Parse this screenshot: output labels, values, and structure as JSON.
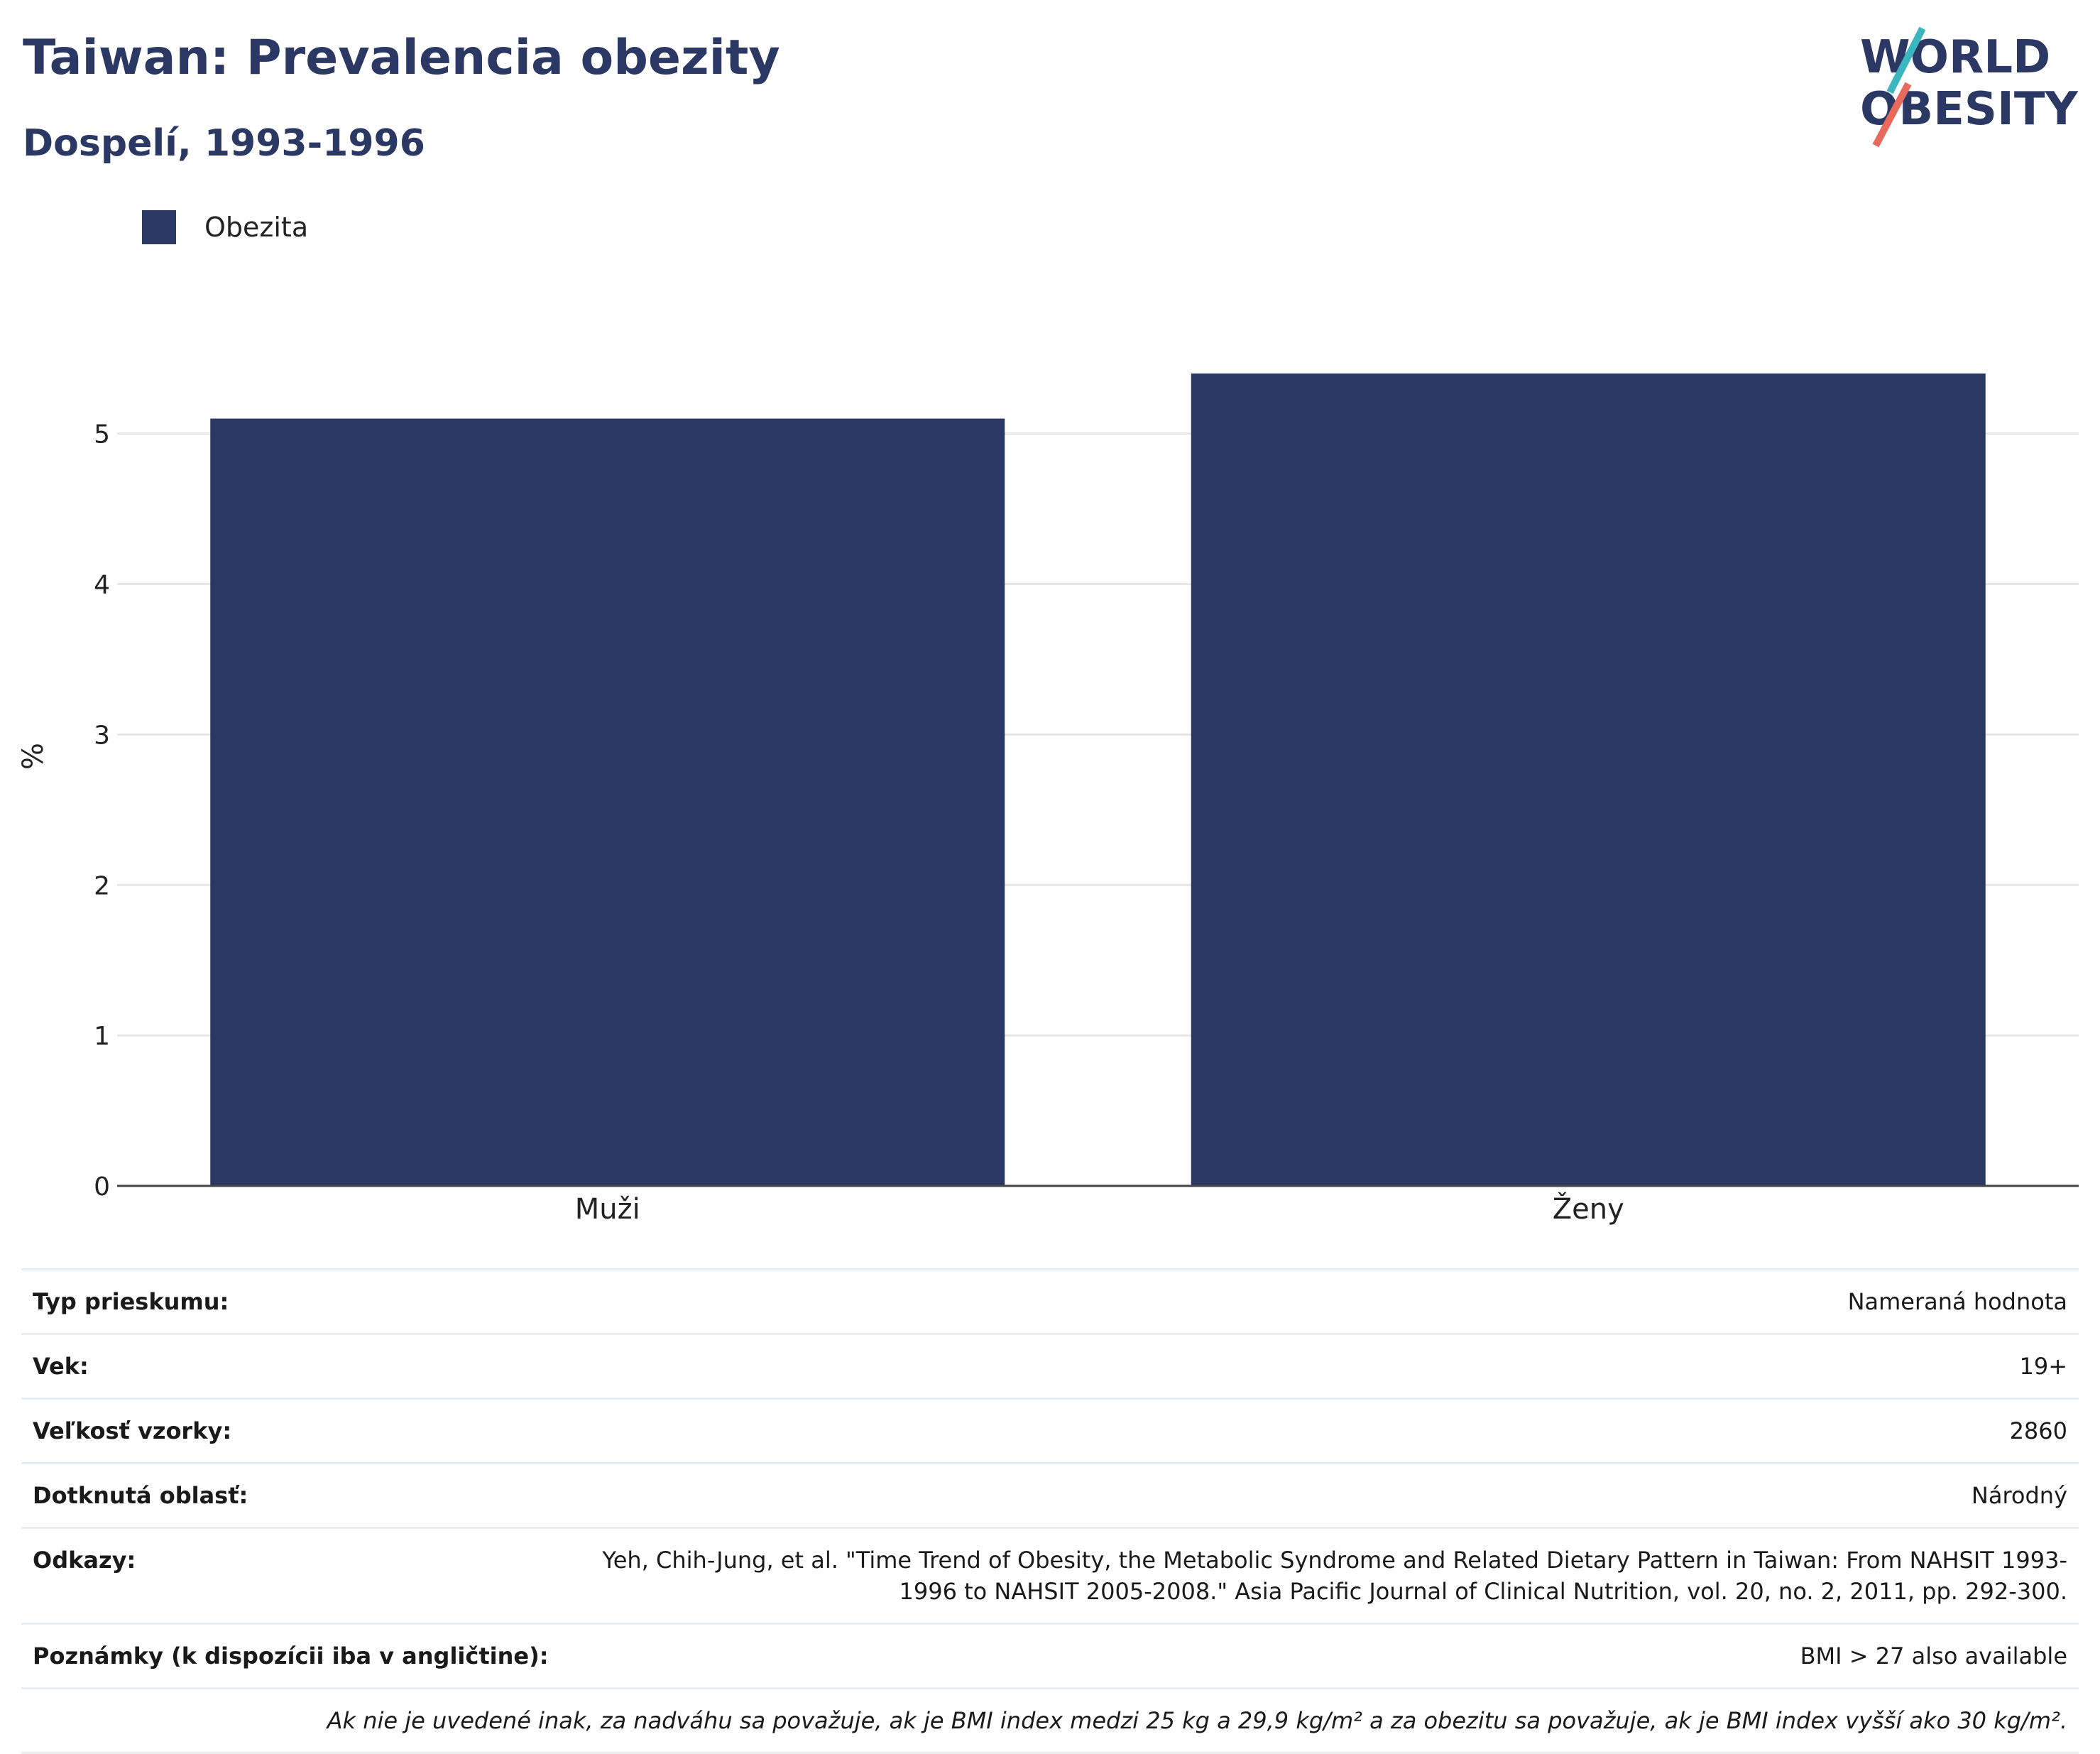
{
  "header": {
    "title": "Taiwan: Prevalencia obezity",
    "subtitle": "Dospelí, 1993-1996"
  },
  "logo": {
    "line1": "WORLD",
    "line2": "OBESITY",
    "accent_teal": "#3bb6c0",
    "accent_coral": "#e86a5c",
    "text_color": "#2b3863"
  },
  "legend": {
    "label": "Obezita",
    "color": "#2b3863"
  },
  "chart_data": {
    "type": "bar",
    "categories": [
      "Muži",
      "Ženy"
    ],
    "series": [
      {
        "name": "Obezita",
        "values": [
          5.1,
          5.4
        ],
        "color": "#2b3863"
      }
    ],
    "ylabel": "%",
    "ylim": [
      0,
      5.9
    ],
    "yticks": [
      0,
      1,
      2,
      3,
      4,
      5
    ],
    "grid": true,
    "legend_position": "top-left"
  },
  "info": {
    "rows": [
      {
        "key": "Typ prieskumu:",
        "value": "Nameraná hodnota"
      },
      {
        "key": "Vek:",
        "value": "19+"
      },
      {
        "key": "Veľkosť vzorky:",
        "value": "2860"
      },
      {
        "key": "Dotknutá oblasť:",
        "value": "Národný"
      },
      {
        "key": "Odkazy:",
        "value": "Yeh, Chih-Jung, et al. \"Time Trend of Obesity, the Metabolic Syndrome and Related Dietary Pattern in Taiwan: From NAHSIT 1993-1996 to NAHSIT 2005-2008.\" Asia Pacific Journal of Clinical Nutrition, vol. 20, no. 2, 2011, pp. 292-300."
      },
      {
        "key": "Poznámky (k dispozícii iba v angličtine):",
        "value": "BMI > 27 also available"
      }
    ],
    "footnote": "Ak nie je uvedené inak, za nadváhu sa považuje, ak je BMI index medzi 25 kg a 29,9 kg/m² a za obezitu sa považuje, ak je BMI index vyšší ako 30 kg/m²."
  }
}
